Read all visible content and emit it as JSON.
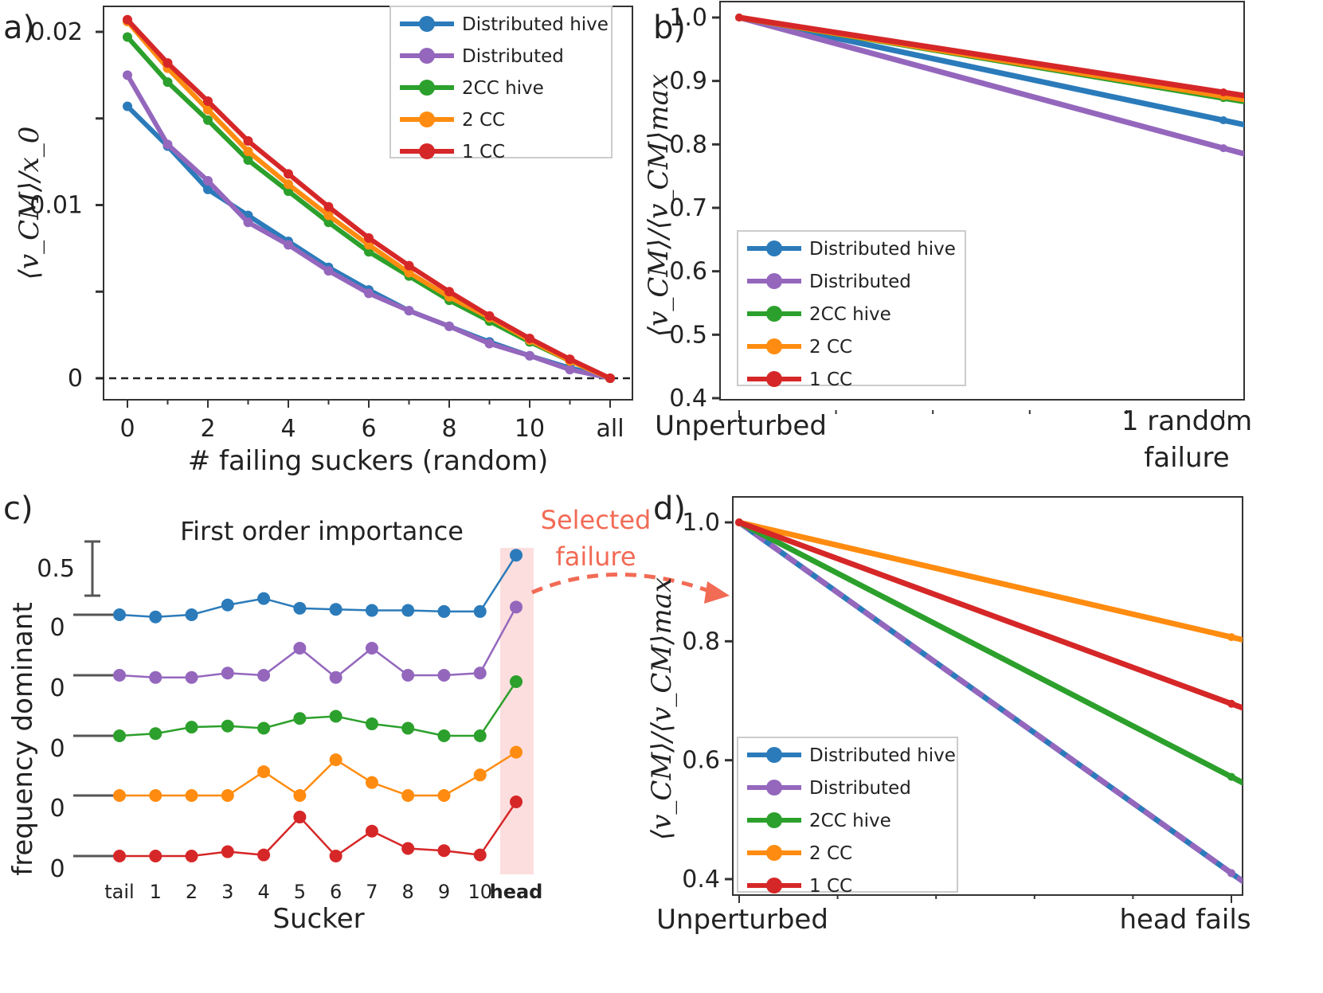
{
  "colors": {
    "Distributed hive": "#2b7bba",
    "Distributed": "#9467bd",
    "2CC hive": "#2ca02c",
    "2 CC": "#ff8c10",
    "1 CC": "#d62728",
    "annotation": "#f26b55",
    "highlight": "#fcdede"
  },
  "chart_data": [
    {
      "panel": "a)",
      "type": "line",
      "xlabel": "# failing suckers (random)",
      "ylabel": "⟨v_CM⟩/x_0",
      "x_categories": [
        "0",
        "1",
        "2",
        "3",
        "4",
        "5",
        "6",
        "7",
        "8",
        "9",
        "10",
        "11",
        "all"
      ],
      "xticks": [
        "0",
        "2",
        "4",
        "6",
        "8",
        "10",
        "all"
      ],
      "yticks": [
        "0",
        "0.01",
        "0.02"
      ],
      "ylim": [
        -0.002,
        0.0205
      ],
      "zero_line": true,
      "legend": [
        "Distributed hive",
        "Distributed",
        "2CC hive",
        "2 CC",
        "1 CC"
      ],
      "series": [
        {
          "name": "Distributed hive",
          "values": [
            0.0157,
            0.0134,
            0.0109,
            0.0094,
            0.0079,
            0.0064,
            0.0051,
            0.0039,
            0.003,
            0.0021,
            0.0013,
            0.0006,
            0.0
          ]
        },
        {
          "name": "Distributed",
          "values": [
            0.0175,
            0.0135,
            0.0114,
            0.009,
            0.0077,
            0.0062,
            0.0049,
            0.0039,
            0.003,
            0.002,
            0.0013,
            0.0005,
            0.0
          ]
        },
        {
          "name": "2CC hive",
          "values": [
            0.0197,
            0.0171,
            0.0149,
            0.0126,
            0.0108,
            0.009,
            0.0073,
            0.0059,
            0.0045,
            0.0033,
            0.0021,
            0.001,
            0.0
          ]
        },
        {
          "name": "2 CC",
          "values": [
            0.0206,
            0.0179,
            0.0155,
            0.0131,
            0.0112,
            0.0094,
            0.0077,
            0.0061,
            0.0047,
            0.0035,
            0.0022,
            0.001,
            0.0
          ]
        },
        {
          "name": "1 CC",
          "values": [
            0.0207,
            0.0182,
            0.016,
            0.0137,
            0.0118,
            0.0099,
            0.0081,
            0.0065,
            0.005,
            0.0036,
            0.0023,
            0.0011,
            0.0
          ]
        }
      ]
    },
    {
      "panel": "b)",
      "type": "line",
      "ylabel": "⟨v_CM⟩/⟨v_CM⟩max",
      "categories": [
        "Unperturbed",
        "1 random failure"
      ],
      "ylim": [
        0.4,
        1.0
      ],
      "yticks": [
        "0.4",
        "0.5",
        "0.6",
        "0.7",
        "0.8",
        "0.9",
        "1.0"
      ],
      "legend": [
        "Distributed hive",
        "Distributed",
        "2CC hive",
        "2 CC",
        "1 CC"
      ],
      "series": [
        {
          "name": "Distributed hive",
          "values": [
            1.0,
            0.838
          ]
        },
        {
          "name": "Distributed",
          "values": [
            1.0,
            0.794
          ]
        },
        {
          "name": "2CC hive",
          "values": [
            1.0,
            0.873
          ]
        },
        {
          "name": "2 CC",
          "values": [
            1.0,
            0.876
          ]
        },
        {
          "name": "1 CC",
          "values": [
            1.0,
            0.882
          ]
        }
      ]
    },
    {
      "panel": "c)",
      "type": "line",
      "title": "First order importance",
      "xlabel": "Sucker",
      "ylabel": "frequency dominant",
      "scale_bar_label": "0.5",
      "offset_label": "0",
      "categories": [
        "tail",
        "1",
        "2",
        "3",
        "4",
        "5",
        "6",
        "7",
        "8",
        "9",
        "10",
        "head"
      ],
      "highlight_category": "head",
      "series": [
        {
          "name": "Distributed hive",
          "values": [
            0.0,
            -0.02,
            0.0,
            0.09,
            0.15,
            0.06,
            0.05,
            0.04,
            0.04,
            0.03,
            0.03,
            0.55
          ]
        },
        {
          "name": "Distributed",
          "values": [
            0.0,
            -0.02,
            -0.02,
            0.02,
            0.0,
            0.25,
            -0.02,
            0.25,
            0.0,
            0.0,
            0.02,
            0.63
          ]
        },
        {
          "name": "2CC hive",
          "values": [
            0.0,
            0.02,
            0.08,
            0.09,
            0.07,
            0.16,
            0.18,
            0.11,
            0.07,
            0.0,
            0.0,
            0.5
          ]
        },
        {
          "name": "2 CC",
          "values": [
            0.0,
            0.0,
            0.0,
            0.0,
            0.22,
            0.0,
            0.33,
            0.12,
            0.0,
            0.0,
            0.19,
            0.4
          ]
        },
        {
          "name": "1 CC",
          "values": [
            0.0,
            0.0,
            0.0,
            0.04,
            0.01,
            0.36,
            0.0,
            0.23,
            0.07,
            0.05,
            0.01,
            0.5
          ]
        }
      ]
    },
    {
      "panel": "d)",
      "type": "line",
      "ylabel": "⟨v_CM⟩/⟨v_CM⟩max",
      "categories": [
        "Unperturbed",
        "head fails"
      ],
      "ylim": [
        0.4,
        1.0
      ],
      "yticks": [
        "0.4",
        "0.6",
        "0.8",
        "1.0"
      ],
      "legend": [
        "Distributed hive",
        "Distributed",
        "2CC hive",
        "2 CC",
        "1 CC"
      ],
      "series": [
        {
          "name": "Distributed hive",
          "values": [
            1.0,
            0.41
          ]
        },
        {
          "name": "Distributed",
          "values": [
            1.0,
            0.41
          ]
        },
        {
          "name": "2CC hive",
          "values": [
            1.0,
            0.572
          ]
        },
        {
          "name": "2 CC",
          "values": [
            1.0,
            0.807
          ]
        },
        {
          "name": "1 CC",
          "values": [
            1.0,
            0.695
          ]
        }
      ]
    }
  ],
  "annotation": {
    "line1": "Selected",
    "line2": "failure"
  }
}
